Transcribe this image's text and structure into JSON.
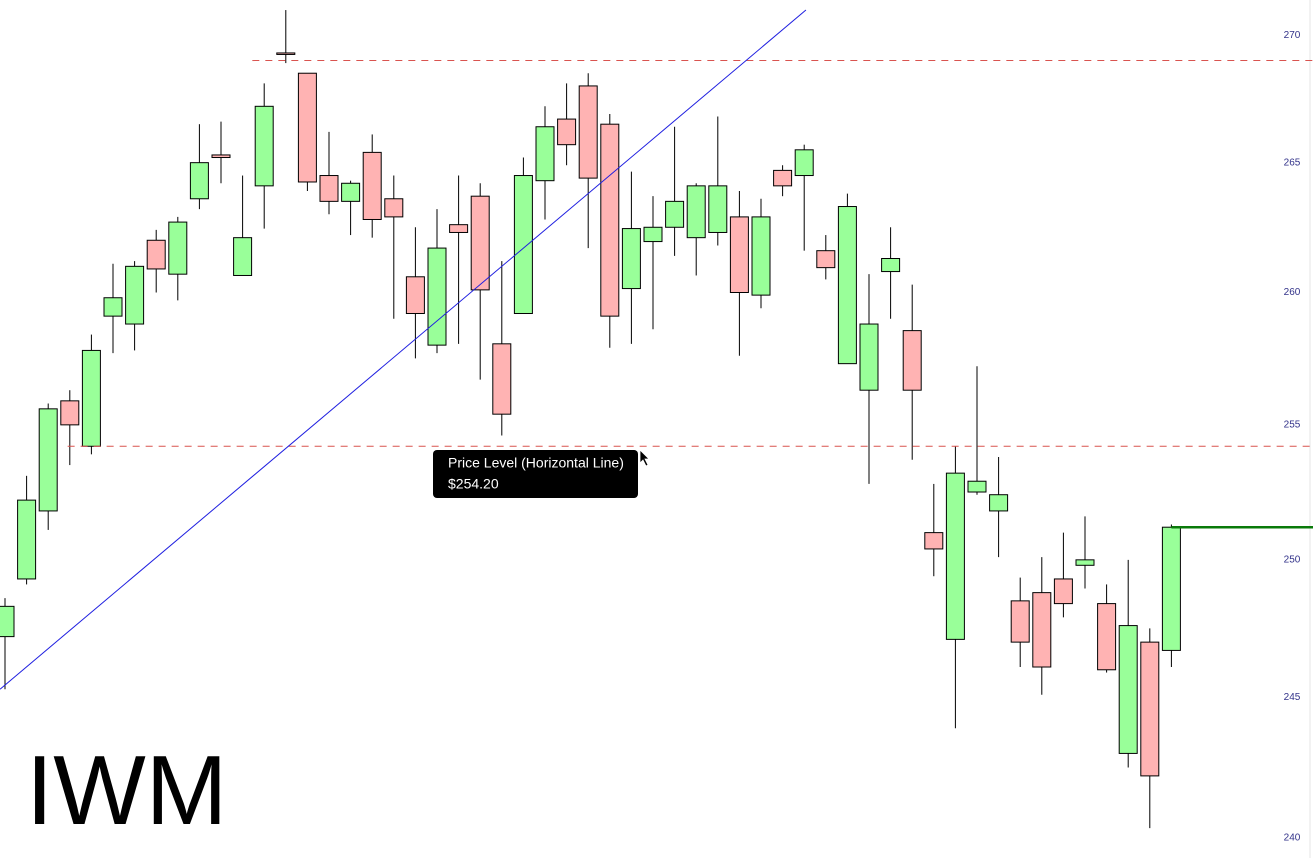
{
  "chart_data": {
    "type": "candlestick",
    "title": "IWM",
    "open": [
      247.2,
      249.3,
      251.8,
      255.9,
      254.2,
      259.1,
      258.8,
      262.0,
      260.7,
      263.6,
      265.3,
      260.65,
      264.1,
      269.3,
      268.5,
      264.5,
      263.5,
      265.4,
      263.6,
      260.6,
      258.0,
      262.6,
      263.7,
      258.05,
      259.2,
      264.3,
      266.7,
      268.0,
      266.5,
      260.15,
      261.95,
      262.5,
      262.1,
      262.3,
      262.9,
      259.9,
      264.7,
      264.5,
      261.6,
      257.3,
      256.3,
      260.8,
      258.55,
      251.0,
      247.1,
      252.5,
      251.8,
      248.5,
      248.8,
      249.3,
      249.8,
      248.4,
      243.0,
      247.0,
      246.7
    ],
    "high": [
      248.6,
      253.1,
      255.8,
      256.3,
      258.4,
      261.1,
      261.2,
      262.4,
      262.9,
      266.5,
      266.6,
      264.5,
      268.1,
      271.0,
      268.5,
      266.2,
      264.3,
      266.1,
      264.5,
      262.5,
      263.2,
      264.5,
      264.2,
      261.2,
      265.2,
      267.2,
      268.1,
      268.5,
      266.9,
      264.65,
      263.7,
      266.4,
      264.2,
      266.8,
      263.9,
      263.6,
      264.9,
      265.7,
      262.2,
      263.8,
      260.7,
      262.5,
      260.3,
      252.8,
      254.2,
      257.2,
      253.8,
      249.35,
      250.1,
      251.0,
      251.6,
      249.1,
      250.0,
      247.5,
      251.3
    ],
    "low": [
      245.3,
      249.1,
      251.1,
      253.5,
      253.9,
      257.7,
      257.8,
      260.0,
      259.7,
      263.2,
      264.2,
      260.65,
      262.45,
      268.9,
      263.9,
      263.0,
      262.2,
      262.1,
      259.0,
      257.5,
      257.7,
      258.05,
      256.7,
      254.6,
      259.2,
      262.8,
      264.9,
      261.7,
      257.9,
      258.05,
      258.6,
      261.4,
      260.65,
      261.8,
      257.6,
      259.4,
      263.7,
      261.6,
      260.5,
      257.3,
      252.8,
      259.0,
      253.7,
      249.4,
      243.9,
      252.4,
      250.1,
      246.1,
      245.1,
      247.9,
      248.95,
      245.9,
      242.5,
      240.35,
      246.1
    ],
    "close": [
      248.3,
      252.2,
      255.6,
      255.0,
      257.8,
      259.8,
      261.0,
      260.9,
      262.7,
      265.0,
      265.2,
      262.1,
      267.2,
      269.25,
      264.25,
      263.5,
      264.2,
      262.8,
      262.9,
      259.2,
      261.7,
      262.3,
      260.1,
      255.4,
      264.5,
      266.4,
      265.7,
      264.4,
      259.1,
      262.45,
      262.5,
      263.5,
      264.1,
      264.1,
      260.0,
      262.9,
      264.1,
      265.5,
      260.95,
      263.3,
      258.8,
      261.3,
      256.3,
      250.4,
      253.2,
      252.9,
      252.4,
      247.0,
      246.1,
      248.4,
      250.0,
      246.0,
      247.6,
      242.2,
      251.2
    ],
    "up_color": "#99ff99",
    "down_color": "#ffb3b3",
    "ylim": [
      239.3,
      271.4
    ],
    "yticks": [
      240,
      245,
      250,
      255,
      260,
      265,
      270
    ],
    "log_scale": true,
    "levels": [
      {
        "value": 269.0,
        "from": 11.45,
        "color": "#d9534f",
        "style": "dashed"
      },
      {
        "value": 254.2,
        "from": 2.9,
        "color": "#d9534f",
        "style": "dashed"
      },
      {
        "value": 251.2,
        "from": 54,
        "color": "#0a7a0a",
        "style": "solid"
      }
    ],
    "trendline": {
      "x": [
        -0.23,
        37.08
      ],
      "y": [
        245.3,
        271.0
      ],
      "color": "#1f1fe0"
    },
    "tooltip": {
      "title": "Price Level (Horizontal Line)",
      "value": 254.2,
      "value_label": "$254.20"
    }
  }
}
